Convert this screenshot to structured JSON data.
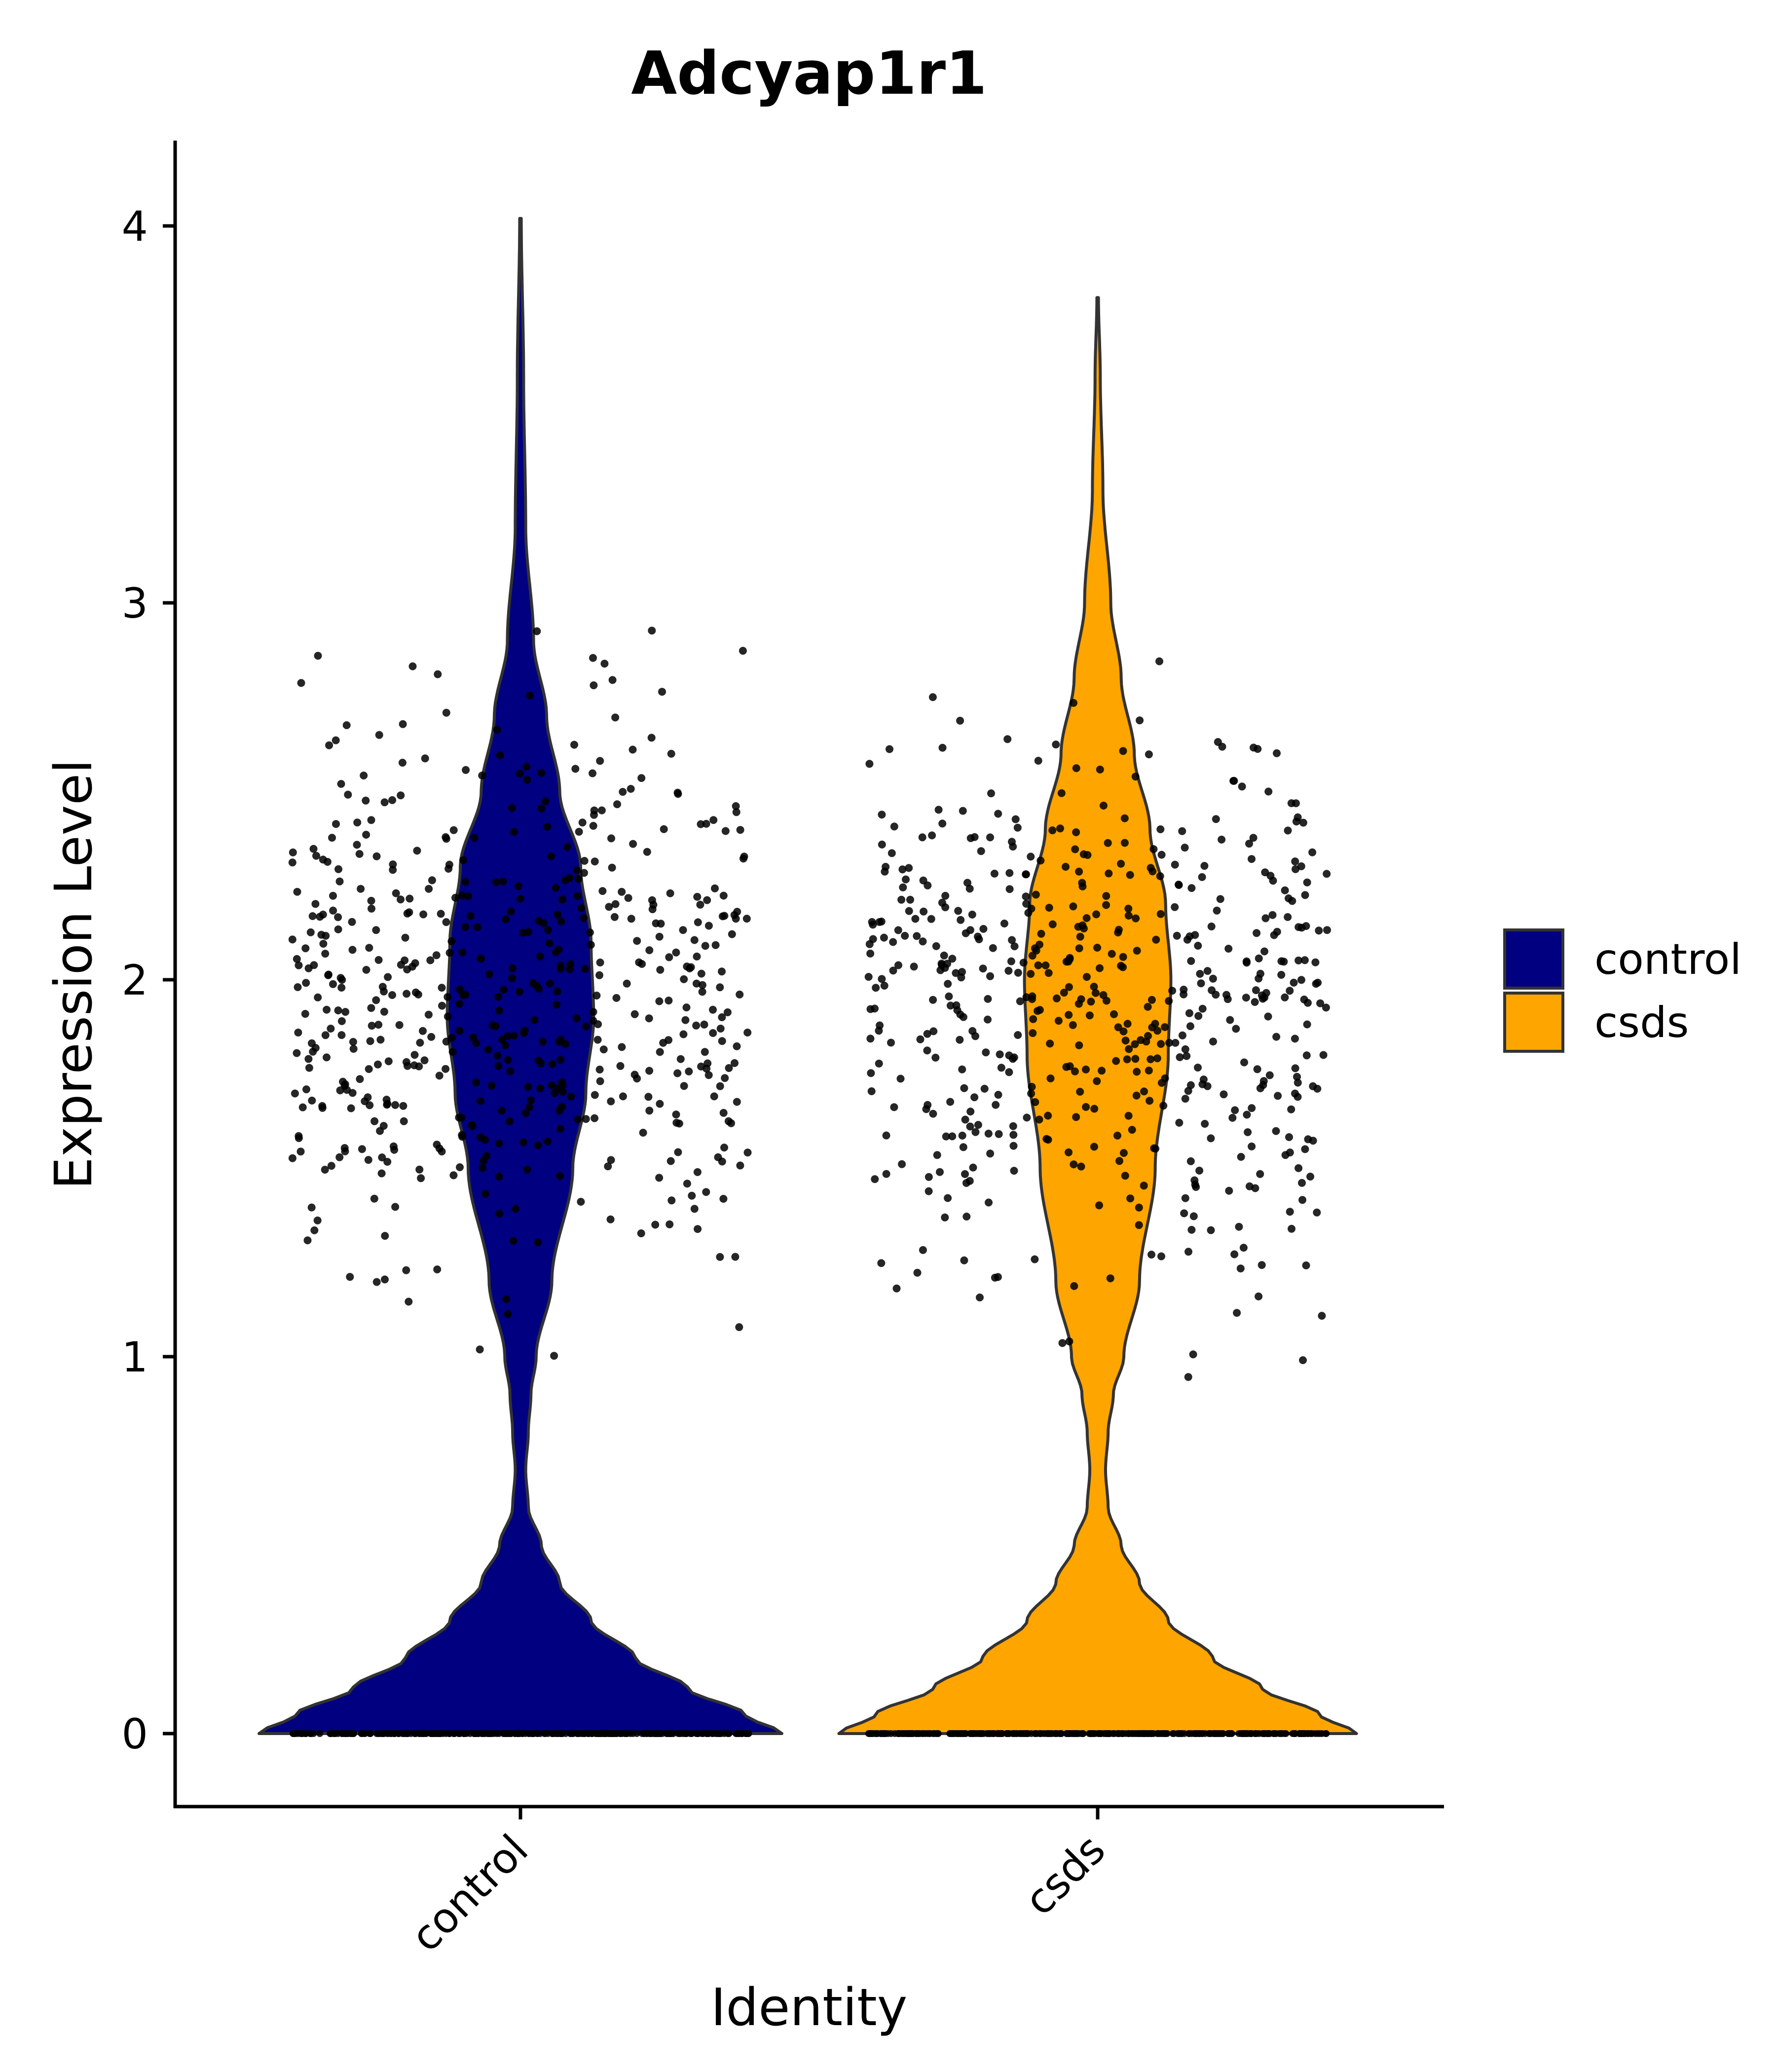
{
  "chart_data": {
    "type": "violin",
    "title": "Adcyap1r1",
    "xlabel": "Identity",
    "ylabel": "Expression Level",
    "categories": [
      "control",
      "csds"
    ],
    "ylim": [
      -0.2,
      4.2
    ],
    "yticks": [
      0,
      1,
      2,
      3,
      4
    ],
    "fill_colors": {
      "control": "#000080",
      "csds": "#FFA500"
    },
    "outline_color": "#333333",
    "point_color": "#000000",
    "legend": {
      "placement": "right",
      "entries": [
        {
          "label": "control",
          "color": "#000080"
        },
        {
          "label": "csds",
          "color": "#FFA500"
        }
      ]
    },
    "series": [
      {
        "name": "control",
        "max": 4.02,
        "zero_fraction": "majority",
        "density_profile": [
          [
            0.0,
            1.0
          ],
          [
            0.05,
            0.86
          ],
          [
            0.12,
            0.64
          ],
          [
            0.2,
            0.44
          ],
          [
            0.3,
            0.27
          ],
          [
            0.4,
            0.15
          ],
          [
            0.5,
            0.08
          ],
          [
            0.6,
            0.03
          ],
          [
            0.7,
            0.02
          ],
          [
            0.8,
            0.03
          ],
          [
            0.9,
            0.04
          ],
          [
            1.0,
            0.06
          ],
          [
            1.2,
            0.12
          ],
          [
            1.5,
            0.2
          ],
          [
            1.7,
            0.25
          ],
          [
            1.9,
            0.28
          ],
          [
            2.1,
            0.27
          ],
          [
            2.3,
            0.23
          ],
          [
            2.5,
            0.15
          ],
          [
            2.7,
            0.1
          ],
          [
            2.9,
            0.05
          ],
          [
            3.2,
            0.02
          ],
          [
            3.6,
            0.012
          ],
          [
            4.02,
            0.003
          ]
        ]
      },
      {
        "name": "csds",
        "max": 3.81,
        "zero_fraction": "majority",
        "density_profile": [
          [
            0.0,
            0.99
          ],
          [
            0.05,
            0.85
          ],
          [
            0.12,
            0.63
          ],
          [
            0.2,
            0.44
          ],
          [
            0.3,
            0.27
          ],
          [
            0.4,
            0.16
          ],
          [
            0.5,
            0.09
          ],
          [
            0.6,
            0.04
          ],
          [
            0.7,
            0.03
          ],
          [
            0.8,
            0.04
          ],
          [
            0.9,
            0.06
          ],
          [
            1.0,
            0.1
          ],
          [
            1.2,
            0.16
          ],
          [
            1.5,
            0.22
          ],
          [
            1.8,
            0.27
          ],
          [
            2.0,
            0.28
          ],
          [
            2.2,
            0.26
          ],
          [
            2.4,
            0.2
          ],
          [
            2.6,
            0.14
          ],
          [
            2.8,
            0.09
          ],
          [
            3.0,
            0.05
          ],
          [
            3.3,
            0.02
          ],
          [
            3.6,
            0.01
          ],
          [
            3.81,
            0.003
          ]
        ]
      }
    ]
  }
}
